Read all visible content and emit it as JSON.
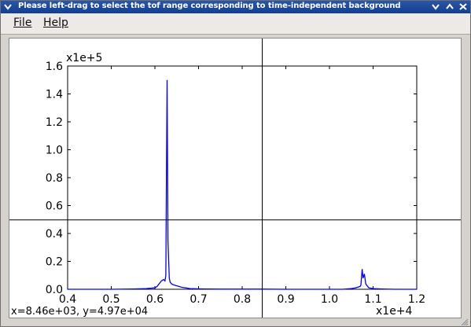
{
  "window": {
    "title": "Please left-drag to select the tof range corresponding to time-independent background",
    "colors": {
      "titlebar": "#1f4ea0",
      "plot_line": "#0000ff"
    }
  },
  "titlebar_buttons": {
    "menu_icon": "chevron-down-icon",
    "minimize_icon": "minimize-icon",
    "maximize_icon": "maximize-icon",
    "close_icon": "close-icon"
  },
  "menu": {
    "file_label": "File",
    "help_label": "Help"
  },
  "chart_data": {
    "type": "line",
    "x_multiplier_label": "x1e+4",
    "y_multiplier_label": "x1e+5",
    "xlim": [
      0.4,
      1.2
    ],
    "ylim": [
      0.0,
      1.6
    ],
    "x_ticks": [
      "0.4",
      "0.5",
      "0.6",
      "0.7",
      "0.8",
      "0.9",
      "1.0",
      "1.1",
      "1.2"
    ],
    "y_ticks": [
      "0.0",
      "0.2",
      "0.4",
      "0.6",
      "0.8",
      "1.0",
      "1.2",
      "1.4",
      "1.6"
    ],
    "grid": false,
    "series": [
      {
        "x": [
          0.4,
          0.45,
          0.5,
          0.55,
          0.58,
          0.6,
          0.605,
          0.61,
          0.615,
          0.62,
          0.623,
          0.625,
          0.628,
          0.63,
          0.633,
          0.635,
          0.638,
          0.64,
          0.645,
          0.65,
          0.655,
          0.66,
          0.665,
          0.67,
          0.68,
          0.69,
          0.7,
          0.72,
          0.75,
          0.8,
          0.85,
          0.9,
          0.95,
          1.0,
          1.03,
          1.05,
          1.06,
          1.07,
          1.072,
          1.075,
          1.077,
          1.08,
          1.083,
          1.085,
          1.09,
          1.1,
          1.12,
          1.15,
          1.2
        ],
        "y": [
          0.0,
          0.0,
          0.0,
          0.002,
          0.005,
          0.01,
          0.02,
          0.04,
          0.06,
          0.07,
          0.06,
          0.1,
          1.5,
          0.35,
          0.08,
          0.05,
          0.04,
          0.035,
          0.03,
          0.025,
          0.02,
          0.015,
          0.012,
          0.01,
          0.005,
          0.004,
          0.003,
          0.002,
          0.001,
          0.001,
          0.001,
          0.0,
          0.0,
          0.0,
          0.0,
          0.005,
          0.01,
          0.02,
          0.03,
          0.145,
          0.08,
          0.11,
          0.04,
          0.03,
          0.01,
          0.005,
          0.002,
          0.0,
          0.0
        ]
      }
    ],
    "crosshair": {
      "x": 0.846,
      "y": 0.497
    },
    "cursor_readout": "x=8.46e+03, y=4.97e+04"
  }
}
